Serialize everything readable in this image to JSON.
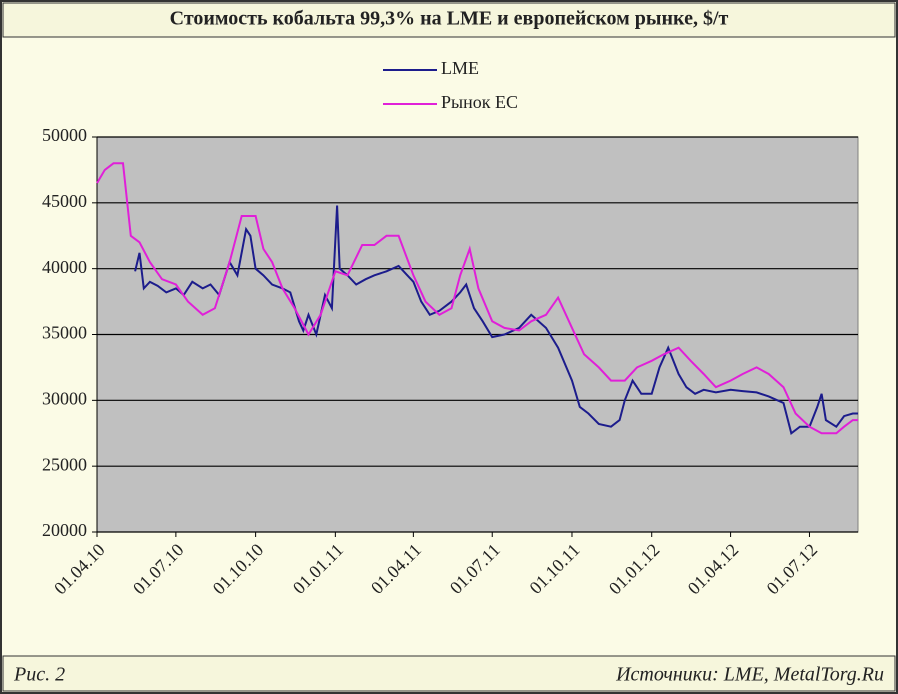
{
  "chart_data": {
    "type": "line",
    "title": "Стоимость кобальта 99,3% на LME и европейском рынке, $/т",
    "figure_label": "Рис. 2",
    "source": "Источники: LME, MetalTorg.Ru",
    "xlim": [
      "01.04.10",
      "26.08.12"
    ],
    "xticks": [
      "01.04.10",
      "01.07.10",
      "01.10.10",
      "01.01.11",
      "01.04.11",
      "01.07.11",
      "01.10.11",
      "01.01.12",
      "01.04.12",
      "01.07.12"
    ],
    "ylim": [
      20000,
      50000
    ],
    "yticks": [
      20000,
      25000,
      30000,
      35000,
      40000,
      45000,
      50000
    ],
    "grid": true,
    "legend": "top",
    "series": [
      {
        "name": "LME",
        "color": "#1c1c8c",
        "x": [
          "15.05.10",
          "20.05.10",
          "25.05.10",
          "01.06.10",
          "10.06.10",
          "20.06.10",
          "01.07.10",
          "10.07.10",
          "20.07.10",
          "01.08.10",
          "10.08.10",
          "20.08.10",
          "01.09.10",
          "10.09.10",
          "20.09.10",
          "25.09.10",
          "01.10.10",
          "10.10.10",
          "20.10.10",
          "01.11.10",
          "10.11.10",
          "20.11.10",
          "25.11.10",
          "01.12.10",
          "10.12.10",
          "20.12.10",
          "28.12.10",
          "03.01.11",
          "06.01.11",
          "15.01.11",
          "25.01.11",
          "05.02.11",
          "15.02.11",
          "01.03.11",
          "15.03.11",
          "25.03.11",
          "01.04.11",
          "10.04.11",
          "20.04.11",
          "01.05.11",
          "15.05.11",
          "25.05.11",
          "01.06.11",
          "10.06.11",
          "20.06.11",
          "01.07.11",
          "15.07.11",
          "01.08.11",
          "15.08.11",
          "01.09.11",
          "15.09.11",
          "01.10.11",
          "10.10.11",
          "20.10.11",
          "01.11.11",
          "15.11.11",
          "25.11.11",
          "01.12.11",
          "10.12.11",
          "20.12.11",
          "01.01.12",
          "10.01.12",
          "20.01.12",
          "01.02.12",
          "10.02.12",
          "20.02.12",
          "01.03.12",
          "15.03.12",
          "01.04.12",
          "15.04.12",
          "01.05.12",
          "15.05.12",
          "01.06.12",
          "10.06.12",
          "20.06.12",
          "01.07.12",
          "10.07.12",
          "15.07.12",
          "20.07.12",
          "01.08.12",
          "10.08.12",
          "20.08.12",
          "26.08.12"
        ],
        "values": [
          39800,
          41200,
          38500,
          39000,
          38700,
          38200,
          38500,
          38000,
          39000,
          38500,
          38800,
          38000,
          40500,
          39500,
          43000,
          42500,
          40000,
          39500,
          38800,
          38500,
          38200,
          36000,
          35300,
          36500,
          35000,
          38000,
          37000,
          44800,
          40000,
          39500,
          38800,
          39200,
          39500,
          39800,
          40200,
          39500,
          39000,
          37500,
          36500,
          36800,
          37500,
          38200,
          38800,
          37000,
          36000,
          34800,
          35000,
          35500,
          36500,
          35500,
          34000,
          31500,
          29500,
          29000,
          28200,
          28000,
          28500,
          30000,
          31500,
          30500,
          30500,
          32500,
          34000,
          32000,
          31000,
          30500,
          30800,
          30600,
          30800,
          30700,
          30600,
          30300,
          29800,
          27500,
          28000,
          28000,
          29500,
          30500,
          28500,
          28000,
          28800,
          29000,
          29000
        ]
      },
      {
        "name": "Рынок ЕС",
        "color": "#e020d8",
        "x": [
          "01.04.10",
          "10.04.10",
          "20.04.10",
          "01.05.10",
          "10.05.10",
          "20.05.10",
          "01.06.10",
          "15.06.10",
          "01.07.10",
          "15.07.10",
          "01.08.10",
          "15.08.10",
          "01.09.10",
          "15.09.10",
          "01.10.10",
          "10.10.10",
          "20.10.10",
          "01.11.10",
          "15.11.10",
          "01.12.10",
          "15.12.10",
          "01.01.11",
          "15.01.11",
          "01.02.11",
          "15.02.11",
          "01.03.11",
          "15.03.11",
          "01.04.11",
          "15.04.11",
          "01.05.11",
          "15.05.11",
          "25.05.11",
          "05.06.11",
          "15.06.11",
          "01.07.11",
          "15.07.11",
          "01.08.11",
          "15.08.11",
          "01.09.11",
          "15.09.11",
          "01.10.11",
          "15.10.11",
          "01.11.11",
          "15.11.11",
          "01.12.11",
          "15.12.11",
          "01.01.12",
          "15.01.12",
          "01.02.12",
          "15.02.12",
          "01.03.12",
          "15.03.12",
          "01.04.12",
          "15.04.12",
          "01.05.12",
          "15.05.12",
          "01.06.12",
          "15.06.12",
          "01.07.12",
          "15.07.12",
          "01.08.12",
          "10.08.12",
          "20.08.12",
          "26.08.12"
        ],
        "values": [
          46500,
          47500,
          48000,
          48000,
          42500,
          42000,
          40500,
          39200,
          38800,
          37500,
          36500,
          37000,
          40500,
          44000,
          44000,
          41500,
          40500,
          38500,
          37000,
          35000,
          36500,
          39800,
          39500,
          41800,
          41800,
          42500,
          42500,
          39500,
          37500,
          36500,
          37000,
          39500,
          41500,
          38500,
          36000,
          35500,
          35300,
          36000,
          36500,
          37800,
          35500,
          33500,
          32500,
          31500,
          31500,
          32500,
          33000,
          33500,
          34000,
          33000,
          32000,
          31000,
          31500,
          32000,
          32500,
          32000,
          31000,
          29000,
          28000,
          27500,
          27500,
          28000,
          28500,
          28500
        ]
      }
    ]
  }
}
